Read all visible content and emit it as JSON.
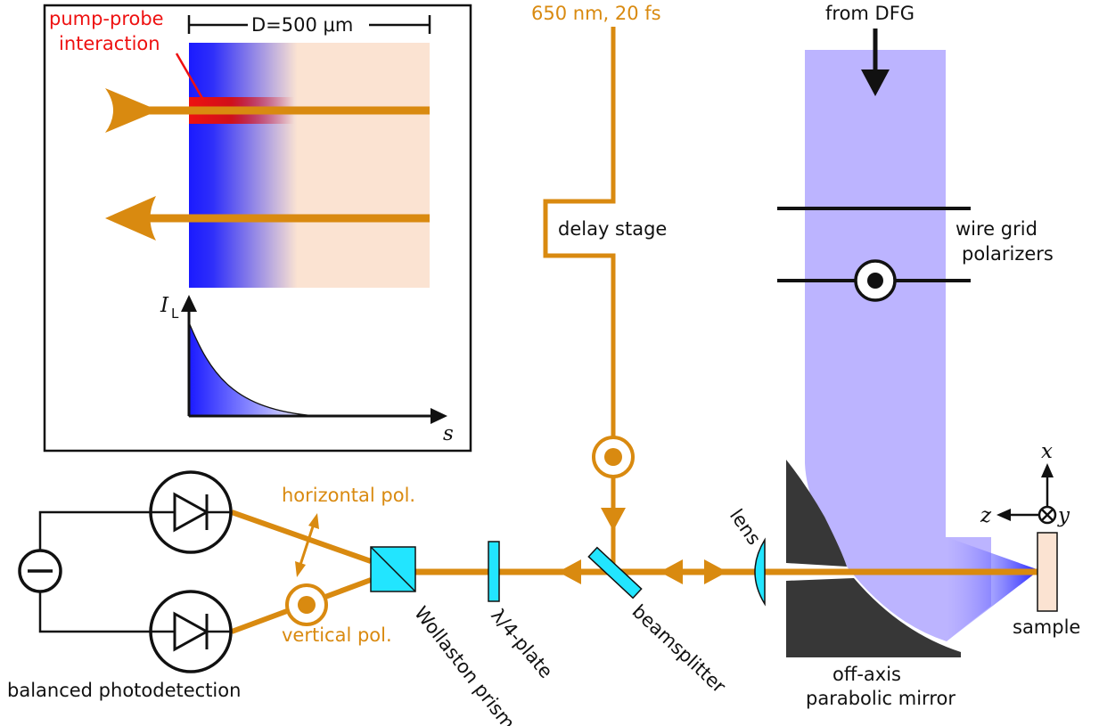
{
  "colors": {
    "beam": "#d98a10",
    "thz": "#bcb4ff",
    "optic": "#22e5ff",
    "mirror": "#373737",
    "sample": "#fbe3d2",
    "pump": "#ee1111",
    "gradient_start": "#1a1aff"
  },
  "labels": {
    "source": "650 nm, 20 fs",
    "from_dfg": "from DFG",
    "delay_stage": "delay stage",
    "wire_grid_1": "wire grid",
    "wire_grid_2": "polarizers",
    "lens": "lens",
    "beamsplitter": "beamsplitter",
    "quarter_wave": "λ/4-plate",
    "wollaston": "Wollaston prism",
    "horizontal_pol": "horizontal pol.",
    "vertical_pol": "vertical pol.",
    "balanced": "balanced photodetection",
    "mirror_1": "off-axis",
    "mirror_2": "parabolic mirror",
    "sample": "sample"
  },
  "axes": {
    "x": "x",
    "y": "y",
    "z": "z"
  },
  "inset": {
    "pump_probe_1": "pump-probe",
    "pump_probe_2": "interaction",
    "thickness": "D=500 μm",
    "intensity_symbol": "I",
    "intensity_sub": "L",
    "depth_symbol": "s"
  },
  "icons": [
    "out-of-plane-polarization-icon",
    "photodiode-icon",
    "voltmeter-icon",
    "double-arrow-icon",
    "arrowhead-icon",
    "into-page-icon"
  ]
}
